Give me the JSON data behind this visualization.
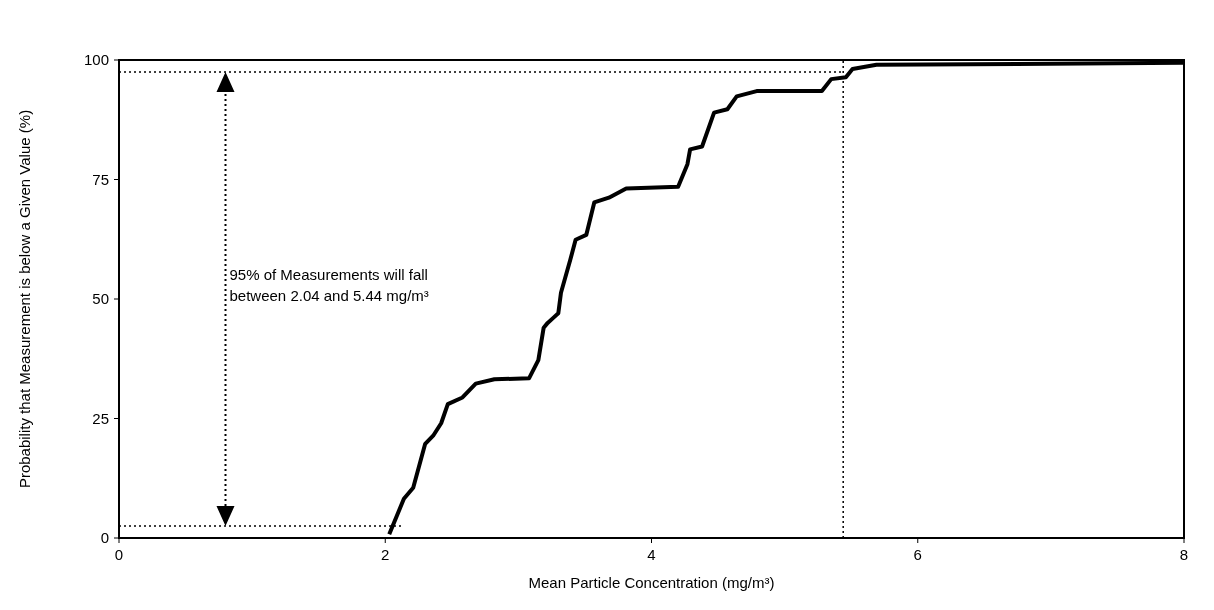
{
  "chart_data": {
    "type": "line",
    "xlabel": "Mean Particle Concentration (mg/m³)",
    "ylabel": "Probability that Measurement is below a Given Value (%)",
    "x": [
      2.03,
      2.14,
      2.21,
      2.3,
      2.36,
      2.42,
      2.47,
      2.58,
      2.68,
      2.82,
      3.08,
      3.15,
      3.19,
      3.22,
      3.26,
      3.3,
      3.32,
      3.39,
      3.43,
      3.51,
      3.57,
      3.68,
      3.81,
      4.2,
      4.27,
      4.29,
      4.38,
      4.47,
      4.57,
      4.64,
      4.79,
      5.28,
      5.35,
      5.46,
      5.51,
      5.69,
      8
    ],
    "series": [
      {
        "color": "#000000",
        "values": [
          0.8,
          8.2,
          10.5,
          19.7,
          21.4,
          24,
          28,
          29.4,
          32.3,
          33.2,
          33.4,
          37.2,
          44,
          45,
          46,
          47,
          51.3,
          58.2,
          62.4,
          63.4,
          70.2,
          71.2,
          73.1,
          73.5,
          78.2,
          81.3,
          81.9,
          89,
          89.7,
          92.4,
          93.5,
          93.5,
          96,
          96.4,
          98.1,
          99,
          99.4
        ]
      }
    ],
    "xlim": [
      0,
      8
    ],
    "xticks": [
      0,
      2,
      4,
      6,
      8
    ],
    "ylim": [
      0,
      100
    ],
    "yticks": [
      0,
      25,
      50,
      75,
      100
    ],
    "grid": false,
    "line_style": "solid",
    "ref_lines": [
      {
        "axis": "y",
        "value": 2.5,
        "line_style": "dotted",
        "color": "#000000"
      },
      {
        "axis": "y",
        "value": 97.5,
        "line_style": "dotted",
        "color": "#000000"
      },
      {
        "axis": "x",
        "value": 5.44,
        "line_style": "dotted",
        "color": "#000000"
      }
    ],
    "annotations": [
      "95% of Measurements will fall between 2.04 and 5.44 mg/m³"
    ]
  }
}
